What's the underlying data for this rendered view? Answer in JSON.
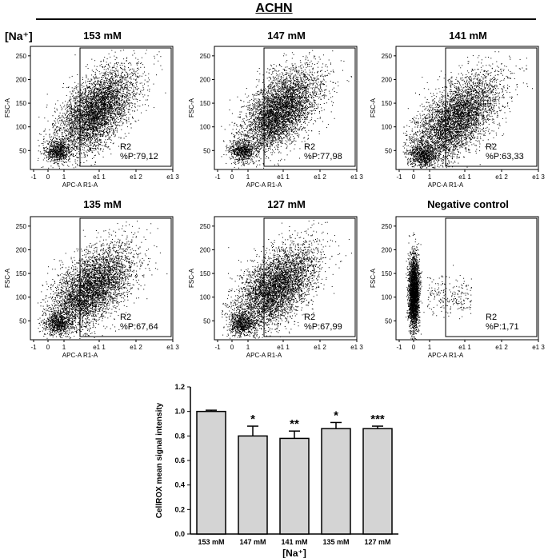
{
  "header": {
    "title": "ACHN",
    "na_label": "[Na⁺]"
  },
  "chart_data": [
    {
      "type": "scatter",
      "title": "153 mM",
      "xlabel": "APC-A R1-A",
      "ylabel": "FSC-A",
      "x_ticks": [
        "-1",
        "0",
        "1",
        "e1 1",
        "e1 2",
        "e1 3"
      ],
      "y_ticks": [
        "50",
        "100",
        "150",
        "200",
        "250"
      ],
      "gate": {
        "name": "R2",
        "percent": "%P:79,12"
      },
      "distribution": "broad-high"
    },
    {
      "type": "scatter",
      "title": "147 mM",
      "xlabel": "APC-A R1-A",
      "ylabel": "FSC-A",
      "x_ticks": [
        "-1",
        "0",
        "1",
        "e1 1",
        "e1 2",
        "e1 3"
      ],
      "y_ticks": [
        "50",
        "100",
        "150",
        "200",
        "250"
      ],
      "gate": {
        "name": "R2",
        "percent": "%P:77,98"
      },
      "distribution": "broad-high"
    },
    {
      "type": "scatter",
      "title": "141 mM",
      "xlabel": "APC-A R1-A",
      "ylabel": "FSC-A",
      "x_ticks": [
        "-1",
        "0",
        "1",
        "e1 1",
        "e1 2",
        "e1 3"
      ],
      "y_ticks": [
        "50",
        "100",
        "150",
        "200",
        "250"
      ],
      "gate": {
        "name": "R2",
        "percent": "%P:63,33"
      },
      "distribution": "broad-low"
    },
    {
      "type": "scatter",
      "title": "135 mM",
      "xlabel": "APC-A R1-A",
      "ylabel": "FSC-A",
      "x_ticks": [
        "-1",
        "0",
        "1",
        "e1 1",
        "e1 2",
        "e1 3"
      ],
      "y_ticks": [
        "50",
        "100",
        "150",
        "200",
        "250"
      ],
      "gate": {
        "name": "R2",
        "percent": "%P:67,64"
      },
      "distribution": "broad-mid"
    },
    {
      "type": "scatter",
      "title": "127 mM",
      "xlabel": "APC-A R1-A",
      "ylabel": "FSC-A",
      "x_ticks": [
        "-1",
        "0",
        "1",
        "e1 1",
        "e1 2",
        "e1 3"
      ],
      "y_ticks": [
        "50",
        "100",
        "150",
        "200",
        "250"
      ],
      "gate": {
        "name": "R2",
        "percent": "%P:67,99"
      },
      "distribution": "broad-mid"
    },
    {
      "type": "scatter",
      "title": "Negative control",
      "xlabel": "APC-A R1-A",
      "ylabel": "FSC-A",
      "x_ticks": [
        "-1",
        "0",
        "1",
        "e1 1",
        "e1 2",
        "e1 3"
      ],
      "y_ticks": [
        "50",
        "100",
        "150",
        "200",
        "250"
      ],
      "gate": {
        "name": "R2",
        "percent": "%P:1,71"
      },
      "distribution": "negative"
    },
    {
      "type": "bar",
      "title": "",
      "xlabel": "[Na⁺]",
      "ylabel": "CellROX mean signal intensity",
      "categories": [
        "153 mM",
        "147 mM",
        "141 mM",
        "135 mM",
        "127 mM"
      ],
      "values": [
        1.0,
        0.8,
        0.78,
        0.86,
        0.86
      ],
      "errors": [
        0.01,
        0.08,
        0.06,
        0.05,
        0.02
      ],
      "significance": [
        "",
        "*",
        "**",
        "*",
        "***"
      ],
      "ylim": [
        0.0,
        1.2
      ],
      "y_ticks": [
        "0.0",
        "0.2",
        "0.4",
        "0.6",
        "0.8",
        "1.0",
        "1.2"
      ],
      "bar_color": "#d4d4d4"
    }
  ]
}
